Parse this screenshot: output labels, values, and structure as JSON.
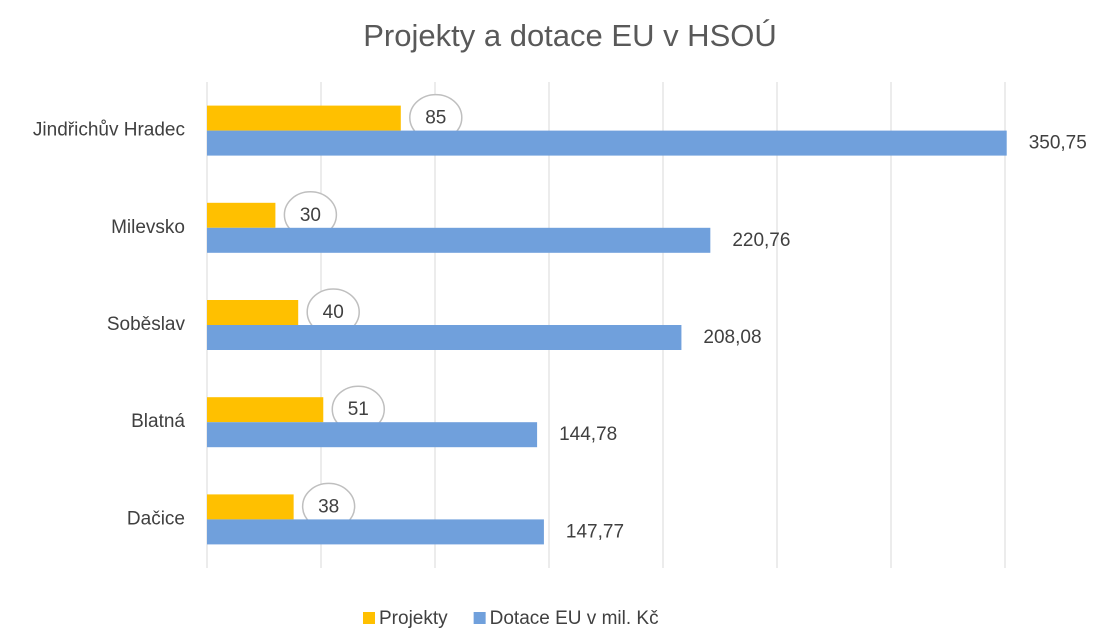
{
  "chart_data": {
    "type": "hbar",
    "title": "Projekty a dotace EU v HSOÚ",
    "categories": [
      "Jindřichův Hradec",
      "Milevsko",
      "Soběslav",
      "Blatná",
      "Dačice"
    ],
    "series": [
      {
        "name": "Projekty",
        "color": "#ffc000",
        "values": [
          85,
          30,
          40,
          51,
          38
        ]
      },
      {
        "name": "Dotace EU v mil. Kč",
        "color": "#70a0dc",
        "values": [
          350.75,
          220.76,
          208.08,
          144.78,
          147.77
        ],
        "value_labels": [
          "350,75",
          "220,76",
          "208,08",
          "144,78",
          "147,77"
        ]
      }
    ],
    "xlim": [
      0,
      350
    ],
    "xticks": [
      0,
      50,
      100,
      150,
      200,
      250,
      300,
      350
    ],
    "grid": true,
    "legend": "bottom"
  }
}
